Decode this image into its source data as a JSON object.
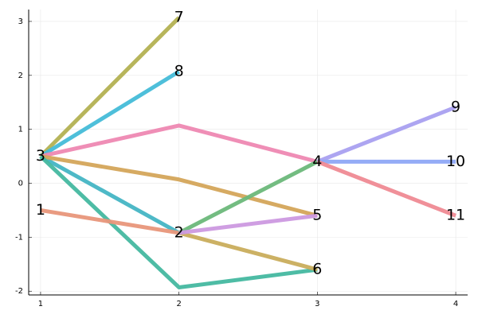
{
  "chart_data": {
    "type": "line",
    "xlim": [
      0.914,
      4.086
    ],
    "ylim": [
      -2.07,
      3.22
    ],
    "xticks": [
      1,
      2,
      3,
      4
    ],
    "yticks": [
      -2,
      -1,
      0,
      1,
      2,
      3
    ],
    "grid": true,
    "series": [
      {
        "color": "#b3b152",
        "x": [
          1,
          2
        ],
        "values": [
          0.5,
          3.07
        ]
      },
      {
        "color": "#44bcd8",
        "x": [
          1,
          2
        ],
        "values": [
          0.5,
          2.07
        ]
      },
      {
        "color": "#44b5c4",
        "x": [
          1,
          2
        ],
        "values": [
          0.5,
          -0.92
        ]
      },
      {
        "color": "#ee88b2",
        "x": [
          1,
          2,
          3
        ],
        "values": [
          0.5,
          1.07,
          0.4
        ]
      },
      {
        "color": "#d4a55a",
        "x": [
          1,
          2,
          3
        ],
        "values": [
          0.5,
          0.07,
          -0.6
        ]
      },
      {
        "color": "#44b8a0",
        "x": [
          1,
          2,
          3
        ],
        "values": [
          0.5,
          -1.93,
          -1.6
        ]
      },
      {
        "color": "#e8967a",
        "x": [
          1,
          2
        ],
        "values": [
          -0.5,
          -0.92
        ]
      },
      {
        "color": "#c9ad5c",
        "x": [
          2,
          3
        ],
        "values": [
          -0.92,
          -1.6
        ]
      },
      {
        "color": "#6cb87a",
        "x": [
          2,
          3
        ],
        "values": [
          -0.92,
          0.4
        ]
      },
      {
        "color": "#cc99e0",
        "x": [
          2,
          3
        ],
        "values": [
          -0.92,
          -0.6
        ]
      },
      {
        "color": "#a9a0f0",
        "x": [
          3,
          4
        ],
        "values": [
          0.4,
          1.41
        ]
      },
      {
        "color": "#8ea8f5",
        "x": [
          3,
          4
        ],
        "values": [
          0.4,
          0.4
        ]
      },
      {
        "color": "#ef8a94",
        "x": [
          3,
          4
        ],
        "values": [
          0.4,
          -0.6
        ]
      }
    ],
    "nodes": [
      {
        "label": "1",
        "x": 1,
        "y": -0.5
      },
      {
        "label": "2",
        "x": 2,
        "y": -0.92
      },
      {
        "label": "3",
        "x": 1,
        "y": 0.5
      },
      {
        "label": "4",
        "x": 3,
        "y": 0.4
      },
      {
        "label": "5",
        "x": 3,
        "y": -0.6
      },
      {
        "label": "6",
        "x": 3,
        "y": -1.6
      },
      {
        "label": "7",
        "x": 2,
        "y": 3.07
      },
      {
        "label": "8",
        "x": 2,
        "y": 2.07
      },
      {
        "label": "9",
        "x": 4,
        "y": 1.41
      },
      {
        "label": "10",
        "x": 4,
        "y": 0.4
      },
      {
        "label": "11",
        "x": 4,
        "y": -0.6
      }
    ]
  }
}
